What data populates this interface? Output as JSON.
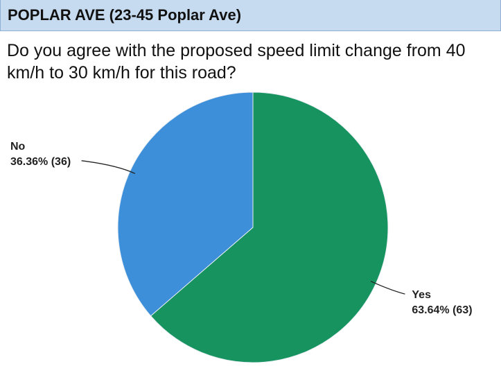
{
  "chart_data": {
    "type": "pie",
    "title": "POPLAR AVE (23-45 Poplar Ave)",
    "subtitle": "Do you agree with the proposed speed limit change from 40 km/h to 30 km/h for this road?",
    "categories": [
      "Yes",
      "No"
    ],
    "values": [
      63.64,
      36.36
    ],
    "value_labels": [
      "63.64% (63)",
      "36.36% (36)"
    ],
    "colors": [
      "#16935f",
      "#3d8fd9"
    ]
  }
}
